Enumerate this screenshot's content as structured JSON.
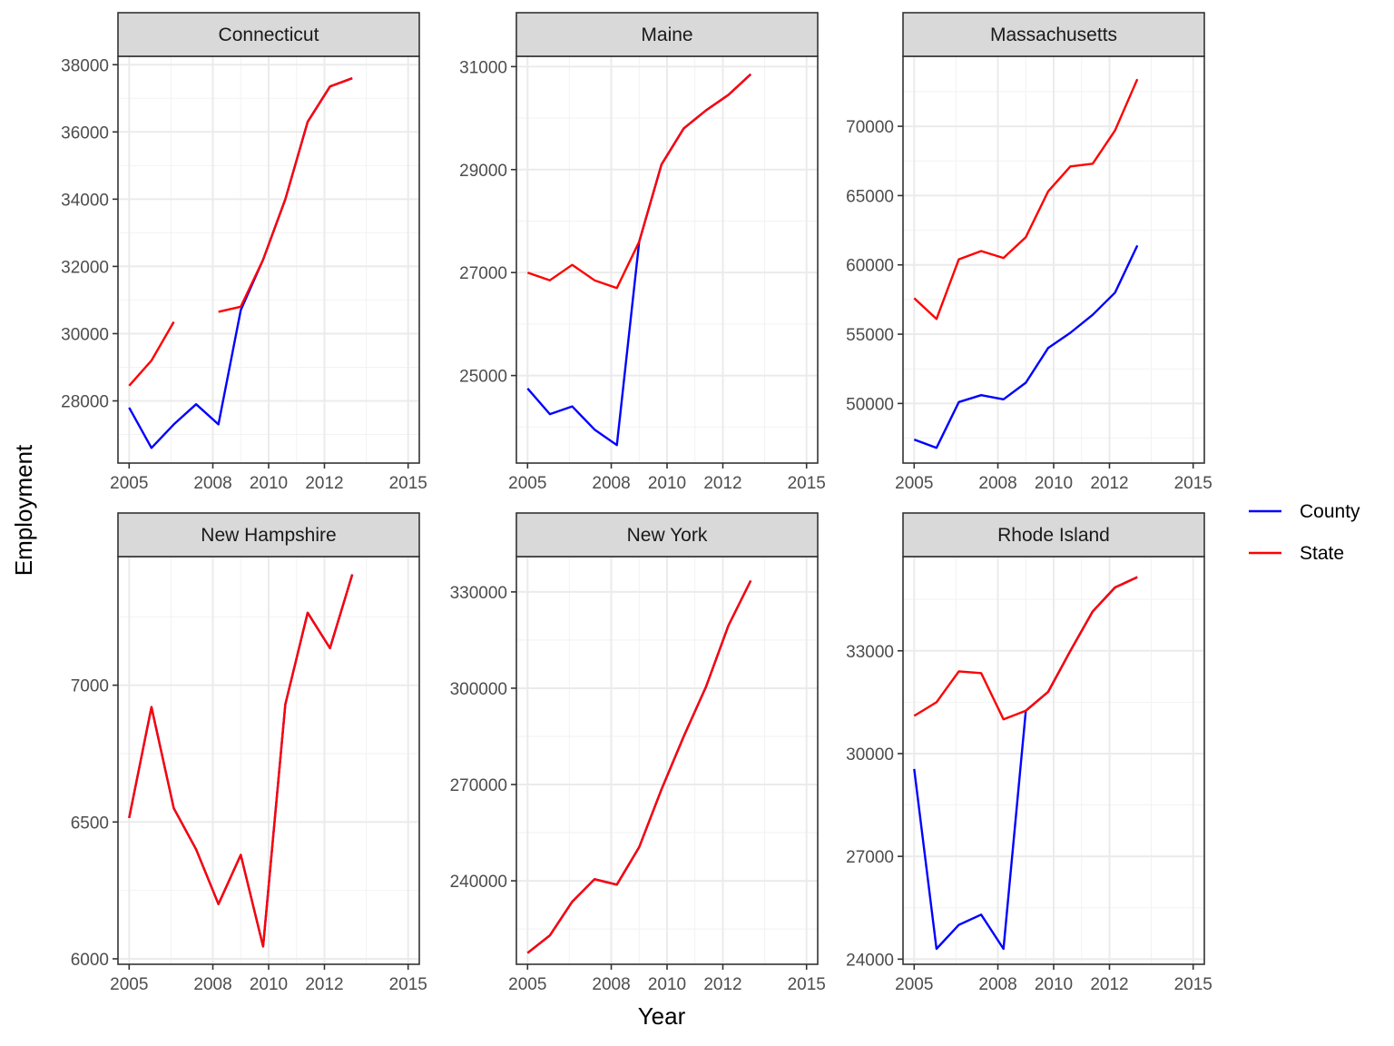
{
  "chart_data": {
    "type": "line",
    "layout": "facet-grid-2x3",
    "xlabel": "Year",
    "ylabel": "Employment",
    "x_ticks": [
      2005,
      2008,
      2010,
      2012,
      2015
    ],
    "legend": {
      "placement": "right",
      "entries": [
        {
          "name": "County",
          "color": "#0000ff"
        },
        {
          "name": "State",
          "color": "#ff0000"
        }
      ]
    },
    "grid": true,
    "panels": [
      {
        "title": "Connecticut",
        "xlim": [
          2004.6,
          2015.4
        ],
        "ylim": [
          26150,
          38250
        ],
        "y_ticks": [
          28000,
          30000,
          32000,
          34000,
          36000,
          38000
        ],
        "series": [
          {
            "name": "County",
            "color": "#0000ff",
            "points": [
              [
                2005,
                27800
              ],
              [
                2005.8,
                26600
              ],
              [
                2006.6,
                27300
              ],
              [
                2007.4,
                27900
              ],
              [
                2008.2,
                27300
              ],
              [
                2009,
                30700
              ],
              [
                2009.8,
                32200
              ],
              [
                2010.6,
                34000
              ],
              [
                2011.4,
                36300
              ],
              [
                2012.2,
                37350
              ],
              [
                2013,
                37600
              ]
            ]
          },
          {
            "name": "State",
            "color": "#ff0000",
            "segments": [
              [
                [
                  2005,
                  28450
                ],
                [
                  2005.8,
                  29200
                ],
                [
                  2006.6,
                  30350
                ]
              ],
              [
                [
                  2008.2,
                  30650
                ],
                [
                  2009,
                  30800
                ],
                [
                  2009.8,
                  32200
                ],
                [
                  2010.6,
                  34000
                ],
                [
                  2011.4,
                  36300
                ],
                [
                  2012.2,
                  37350
                ],
                [
                  2013,
                  37600
                ]
              ]
            ]
          }
        ]
      },
      {
        "title": "Maine",
        "xlim": [
          2004.6,
          2015.4
        ],
        "ylim": [
          23300,
          31200
        ],
        "y_ticks": [
          25000,
          27000,
          29000,
          31000
        ],
        "series": [
          {
            "name": "County",
            "color": "#0000ff",
            "points": [
              [
                2005,
                24750
              ],
              [
                2005.8,
                24250
              ],
              [
                2006.6,
                24400
              ],
              [
                2007.4,
                23950
              ],
              [
                2008.2,
                23650
              ],
              [
                2009,
                27600
              ],
              [
                2009.8,
                29100
              ],
              [
                2010.6,
                29800
              ],
              [
                2011.4,
                30150
              ],
              [
                2012.2,
                30450
              ],
              [
                2013,
                30850
              ]
            ]
          },
          {
            "name": "State",
            "color": "#ff0000",
            "points": [
              [
                2005,
                27000
              ],
              [
                2005.8,
                26850
              ],
              [
                2006.6,
                27150
              ],
              [
                2007.4,
                26850
              ],
              [
                2008.2,
                26700
              ],
              [
                2009,
                27600
              ],
              [
                2009.8,
                29100
              ],
              [
                2010.6,
                29800
              ],
              [
                2011.4,
                30150
              ],
              [
                2012.2,
                30450
              ],
              [
                2013,
                30850
              ]
            ]
          }
        ]
      },
      {
        "title": "Massachusetts",
        "xlim": [
          2004.6,
          2015.4
        ],
        "ylim": [
          45700,
          75050
        ],
        "y_ticks": [
          50000,
          55000,
          60000,
          65000,
          70000
        ],
        "series": [
          {
            "name": "County",
            "color": "#0000ff",
            "points": [
              [
                2005,
                47400
              ],
              [
                2005.8,
                46800
              ],
              [
                2006.6,
                50100
              ],
              [
                2007.4,
                50600
              ],
              [
                2008.2,
                50300
              ],
              [
                2009,
                51500
              ],
              [
                2009.8,
                54000
              ],
              [
                2010.6,
                55100
              ],
              [
                2011.4,
                56400
              ],
              [
                2012.2,
                58000
              ],
              [
                2013,
                61400
              ]
            ]
          },
          {
            "name": "State",
            "color": "#ff0000",
            "points": [
              [
                2005,
                57600
              ],
              [
                2005.8,
                56100
              ],
              [
                2006.6,
                60400
              ],
              [
                2007.4,
                61000
              ],
              [
                2008.2,
                60500
              ],
              [
                2009,
                62000
              ],
              [
                2009.8,
                65300
              ],
              [
                2010.6,
                67100
              ],
              [
                2011.4,
                67300
              ],
              [
                2012.2,
                69700
              ],
              [
                2013,
                73400
              ]
            ]
          }
        ]
      },
      {
        "title": "New Hampshire",
        "xlim": [
          2004.6,
          2015.4
        ],
        "ylim": [
          5980,
          7470
        ],
        "y_ticks": [
          6000,
          6500,
          7000
        ],
        "series": [
          {
            "name": "County",
            "color": "#0000ff",
            "points": [
              [
                2005,
                6515
              ],
              [
                2005.8,
                6920
              ],
              [
                2006.6,
                6550
              ],
              [
                2007.4,
                6400
              ],
              [
                2008.2,
                6200
              ],
              [
                2009,
                6380
              ],
              [
                2009.8,
                6045
              ],
              [
                2010.6,
                6930
              ],
              [
                2011.4,
                7265
              ],
              [
                2012.2,
                7135
              ],
              [
                2013,
                7405
              ]
            ]
          },
          {
            "name": "State",
            "color": "#ff0000",
            "points": [
              [
                2005,
                6515
              ],
              [
                2005.8,
                6920
              ],
              [
                2006.6,
                6550
              ],
              [
                2007.4,
                6400
              ],
              [
                2008.2,
                6200
              ],
              [
                2009,
                6380
              ],
              [
                2009.8,
                6045
              ],
              [
                2010.6,
                6930
              ],
              [
                2011.4,
                7265
              ],
              [
                2012.2,
                7135
              ],
              [
                2013,
                7405
              ]
            ]
          }
        ]
      },
      {
        "title": "New York",
        "xlim": [
          2004.6,
          2015.4
        ],
        "ylim": [
          214000,
          341000
        ],
        "y_ticks": [
          240000,
          270000,
          300000,
          330000
        ],
        "series": [
          {
            "name": "County",
            "color": "#0000ff",
            "points": [
              [
                2005,
                217500
              ],
              [
                2005.8,
                223000
              ],
              [
                2006.6,
                233500
              ],
              [
                2007.4,
                240500
              ],
              [
                2008.2,
                238800
              ],
              [
                2009,
                250500
              ],
              [
                2009.8,
                268500
              ],
              [
                2010.6,
                285000
              ],
              [
                2011.4,
                300500
              ],
              [
                2012.2,
                319500
              ],
              [
                2013,
                333500
              ]
            ]
          },
          {
            "name": "State",
            "color": "#ff0000",
            "points": [
              [
                2005,
                217500
              ],
              [
                2005.8,
                223000
              ],
              [
                2006.6,
                233500
              ],
              [
                2007.4,
                240500
              ],
              [
                2008.2,
                238800
              ],
              [
                2009,
                250500
              ],
              [
                2009.8,
                268500
              ],
              [
                2010.6,
                285000
              ],
              [
                2011.4,
                300500
              ],
              [
                2012.2,
                319500
              ],
              [
                2013,
                333500
              ]
            ]
          }
        ]
      },
      {
        "title": "Rhode Island",
        "xlim": [
          2004.6,
          2015.4
        ],
        "ylim": [
          23850,
          35750
        ],
        "y_ticks": [
          24000,
          27000,
          30000,
          33000
        ],
        "series": [
          {
            "name": "County",
            "color": "#0000ff",
            "points": [
              [
                2005,
                29550
              ],
              [
                2005.8,
                24300
              ],
              [
                2006.6,
                25000
              ],
              [
                2007.4,
                25300
              ],
              [
                2008.2,
                24300
              ],
              [
                2009,
                31250
              ],
              [
                2009.8,
                31800
              ],
              [
                2010.6,
                33000
              ],
              [
                2011.4,
                34150
              ],
              [
                2012.2,
                34850
              ],
              [
                2013,
                35150
              ]
            ]
          },
          {
            "name": "State",
            "color": "#ff0000",
            "points": [
              [
                2005,
                31100
              ],
              [
                2005.8,
                31500
              ],
              [
                2006.6,
                32400
              ],
              [
                2007.4,
                32350
              ],
              [
                2008.2,
                31000
              ],
              [
                2009,
                31250
              ],
              [
                2009.8,
                31800
              ],
              [
                2010.6,
                33000
              ],
              [
                2011.4,
                34150
              ],
              [
                2012.2,
                34850
              ],
              [
                2013,
                35150
              ]
            ]
          }
        ]
      }
    ]
  }
}
